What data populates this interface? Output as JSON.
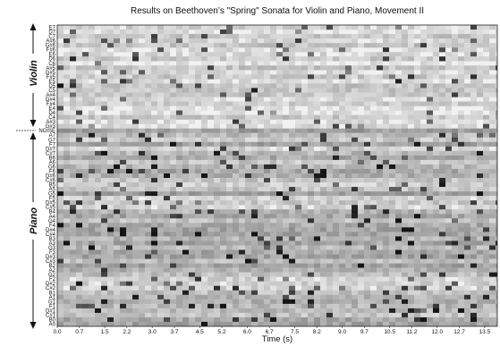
{
  "chart_data": {
    "type": "heatmap",
    "title": "Results on Beethoven’s \"Spring\" Sonata for Violin and Piano, Movement II",
    "xlabel": "Time (s)",
    "x_ticks": [
      "0.0",
      "0.7",
      "1.5",
      "2.2",
      "3.0",
      "3.7",
      "4.5",
      "5.2",
      "6.0",
      "6.7",
      "7.5",
      "8.2",
      "9.0",
      "9.7",
      "10.5",
      "11.2",
      "12.0",
      "12.7",
      "13.5"
    ],
    "xlim": [
      0,
      13.9
    ],
    "color_scale": "grayscale (white = low activation, black = high activation)",
    "sections": [
      {
        "name": "Violin",
        "ticks": [
          "E7",
          "D7",
          "C7",
          "A#6",
          "G#6",
          "F#6",
          "E6",
          "D6",
          "C6",
          "A#5",
          "G#5",
          "F#5",
          "E5",
          "D5",
          "C5",
          "A#4",
          "G#4",
          "F#4",
          "E4",
          "D4",
          "C4",
          "A#3",
          "G#3"
        ]
      },
      {
        "name": "NOISE",
        "ticks": [
          "NOISE"
        ]
      },
      {
        "name": "Piano",
        "ticks": [
          "A7",
          "G7",
          "F7",
          "D#7",
          "C#7",
          "B6",
          "A6",
          "G6",
          "F6",
          "D#6",
          "C#6",
          "B5",
          "A5",
          "G5",
          "F5",
          "D#5",
          "C#5",
          "B4",
          "A4",
          "G4",
          "F4",
          "D#4",
          "C#4",
          "B3",
          "A3",
          "G3",
          "F3",
          "D#3",
          "C#3",
          "B2",
          "A2",
          "G2",
          "F2",
          "D#2",
          "C#2",
          "B1",
          "A1",
          "G1",
          "F1",
          "D#1",
          "C#1",
          "B0",
          "A0"
        ]
      }
    ]
  },
  "labels": {
    "violin": "Violin",
    "piano": "Piano",
    "noise": "NOISE"
  }
}
